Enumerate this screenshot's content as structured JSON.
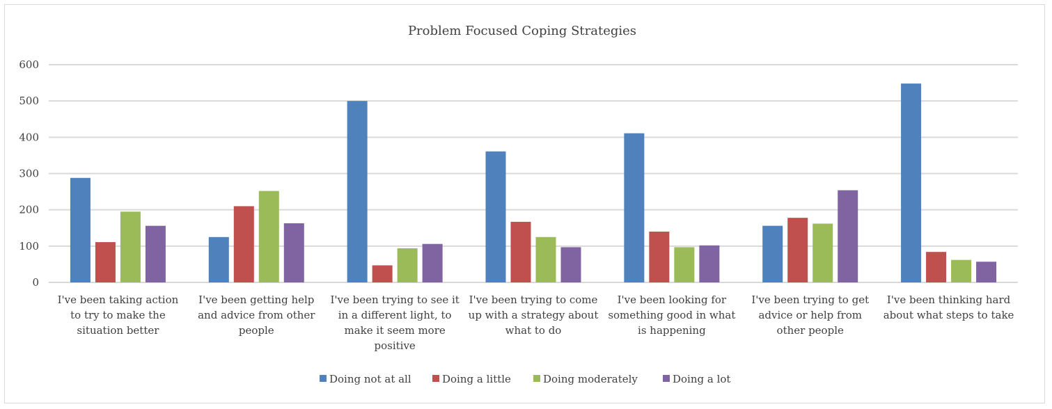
{
  "chart_data": {
    "type": "bar",
    "title": "Problem Focused Coping Strategies",
    "xlabel": "",
    "ylabel": "",
    "ylim": [
      0,
      600
    ],
    "yticks": [
      0,
      100,
      200,
      300,
      400,
      500,
      600
    ],
    "grid": true,
    "legend_position": "bottom",
    "categories": [
      [
        "I've been taking action",
        "to try to make the",
        "situation better"
      ],
      [
        "I've been getting help",
        "and advice from other",
        "people"
      ],
      [
        "I've been trying to see it",
        "in a different light, to",
        "make it seem more",
        "positive"
      ],
      [
        "I've been trying to come",
        "up with a strategy about",
        "what to do"
      ],
      [
        "I've been looking for",
        "something good in what",
        "is happening"
      ],
      [
        "I've been trying to get",
        "advice or help from",
        "other people"
      ],
      [
        "I've been thinking hard",
        "about what steps to take"
      ]
    ],
    "series": [
      {
        "name": "Doing not at all",
        "color": "#4f81bd",
        "values": [
          288,
          125,
          500,
          361,
          411,
          156,
          548
        ]
      },
      {
        "name": "Doing a little",
        "color": "#c0504d",
        "values": [
          111,
          210,
          47,
          167,
          140,
          178,
          84
        ]
      },
      {
        "name": "Doing moderately",
        "color": "#9bbb59",
        "values": [
          195,
          252,
          94,
          125,
          97,
          162,
          62
        ]
      },
      {
        "name": "Doing a lot",
        "color": "#8064a2",
        "values": [
          156,
          163,
          106,
          97,
          102,
          254,
          57
        ]
      }
    ]
  }
}
